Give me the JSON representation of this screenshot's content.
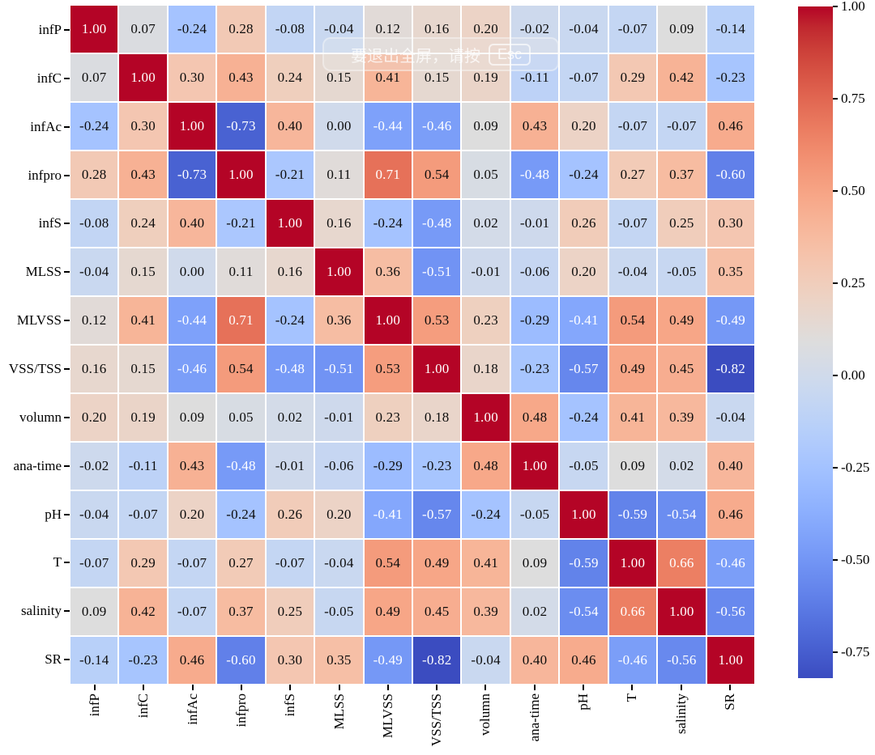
{
  "overlay": {
    "message": "要退出全屏，请按",
    "key": "Esc"
  },
  "colors": {
    "background": "#ffffff",
    "grid_line": "#ffffff",
    "tick_color": "#000000",
    "label_color": "#000000",
    "annot_dark": "#0d0d0d",
    "annot_light": "#ffffff"
  },
  "chart_data": {
    "type": "heatmap",
    "title": "",
    "xlabel": "",
    "ylabel": "",
    "categories": [
      "infP",
      "infC",
      "infAc",
      "infpro",
      "infS",
      "MLSS",
      "MLVSS",
      "VSS/TSS",
      "volumn",
      "ana-time",
      "pH",
      "T",
      "salinity",
      "SR"
    ],
    "matrix": [
      [
        1.0,
        0.07,
        -0.24,
        0.28,
        -0.08,
        -0.04,
        0.12,
        0.16,
        0.2,
        -0.02,
        -0.04,
        -0.07,
        0.09,
        -0.14
      ],
      [
        0.07,
        1.0,
        0.3,
        0.43,
        0.24,
        0.15,
        0.41,
        0.15,
        0.19,
        -0.11,
        -0.07,
        0.29,
        0.42,
        -0.23
      ],
      [
        -0.24,
        0.3,
        1.0,
        -0.73,
        0.4,
        0.0,
        -0.44,
        -0.46,
        0.09,
        0.43,
        0.2,
        -0.07,
        -0.07,
        0.46
      ],
      [
        0.28,
        0.43,
        -0.73,
        1.0,
        -0.21,
        0.11,
        0.71,
        0.54,
        0.05,
        -0.48,
        -0.24,
        0.27,
        0.37,
        -0.6
      ],
      [
        -0.08,
        0.24,
        0.4,
        -0.21,
        1.0,
        0.16,
        -0.24,
        -0.48,
        0.02,
        -0.01,
        0.26,
        -0.07,
        0.25,
        0.3
      ],
      [
        -0.04,
        0.15,
        0.0,
        0.11,
        0.16,
        1.0,
        0.36,
        -0.51,
        -0.01,
        -0.06,
        0.2,
        -0.04,
        -0.05,
        0.35
      ],
      [
        0.12,
        0.41,
        -0.44,
        0.71,
        -0.24,
        0.36,
        1.0,
        0.53,
        0.23,
        -0.29,
        -0.41,
        0.54,
        0.49,
        -0.49
      ],
      [
        0.16,
        0.15,
        -0.46,
        0.54,
        -0.48,
        -0.51,
        0.53,
        1.0,
        0.18,
        -0.23,
        -0.57,
        0.49,
        0.45,
        -0.82
      ],
      [
        0.2,
        0.19,
        0.09,
        0.05,
        0.02,
        -0.01,
        0.23,
        0.18,
        1.0,
        0.48,
        -0.24,
        0.41,
        0.39,
        -0.04
      ],
      [
        -0.02,
        -0.11,
        0.43,
        -0.48,
        -0.01,
        -0.06,
        -0.29,
        -0.23,
        0.48,
        1.0,
        -0.05,
        0.09,
        0.02,
        0.4
      ],
      [
        -0.04,
        -0.07,
        0.2,
        -0.24,
        0.26,
        0.2,
        -0.41,
        -0.57,
        -0.24,
        -0.05,
        1.0,
        -0.59,
        -0.54,
        0.46
      ],
      [
        -0.07,
        0.29,
        -0.07,
        0.27,
        -0.07,
        -0.04,
        0.54,
        0.49,
        0.41,
        0.09,
        -0.59,
        1.0,
        0.66,
        -0.46
      ],
      [
        0.09,
        0.42,
        -0.07,
        0.37,
        0.25,
        -0.05,
        0.49,
        0.45,
        0.39,
        0.02,
        -0.54,
        0.66,
        1.0,
        -0.56
      ],
      [
        -0.14,
        -0.23,
        0.46,
        -0.6,
        0.3,
        0.35,
        -0.49,
        -0.82,
        -0.04,
        0.4,
        0.46,
        -0.46,
        -0.56,
        1.0
      ]
    ],
    "vmin": -0.82,
    "vmax": 1.0,
    "value_format_decimals": 2,
    "annotations": true,
    "grid": false,
    "colormap": "coolwarm",
    "colormap_stops": [
      "#3b4cc0",
      "#445acc",
      "#4d68d7",
      "#5775e1",
      "#6282ea",
      "#6c8ef1",
      "#779af7",
      "#82a5fb",
      "#8db0fe",
      "#98b9ff",
      "#a3c2ff",
      "#aec9fd",
      "#b8d0f9",
      "#c2d5f4",
      "#ccd9ee",
      "#d5dbe6",
      "#dddddd",
      "#e5d8d1",
      "#ecd3c5",
      "#f1ccb9",
      "#f5c4ad",
      "#f7bba0",
      "#f7b194",
      "#f7a687",
      "#f49a7b",
      "#f18d6f",
      "#ec7f63",
      "#e57058",
      "#de604d",
      "#d55042",
      "#cb3e38",
      "#c0282f",
      "#b40426"
    ],
    "legend_position": "right",
    "colorbar_ticks": [
      {
        "label": "1.00",
        "value": 1.0
      },
      {
        "label": "0.75",
        "value": 0.75
      },
      {
        "label": "0.50",
        "value": 0.5
      },
      {
        "label": "0.25",
        "value": 0.25
      },
      {
        "label": "0.00",
        "value": 0.0
      },
      {
        "label": "-0.25",
        "value": -0.25
      },
      {
        "label": "-0.50",
        "value": -0.5
      },
      {
        "label": "-0.75",
        "value": -0.75
      }
    ]
  }
}
